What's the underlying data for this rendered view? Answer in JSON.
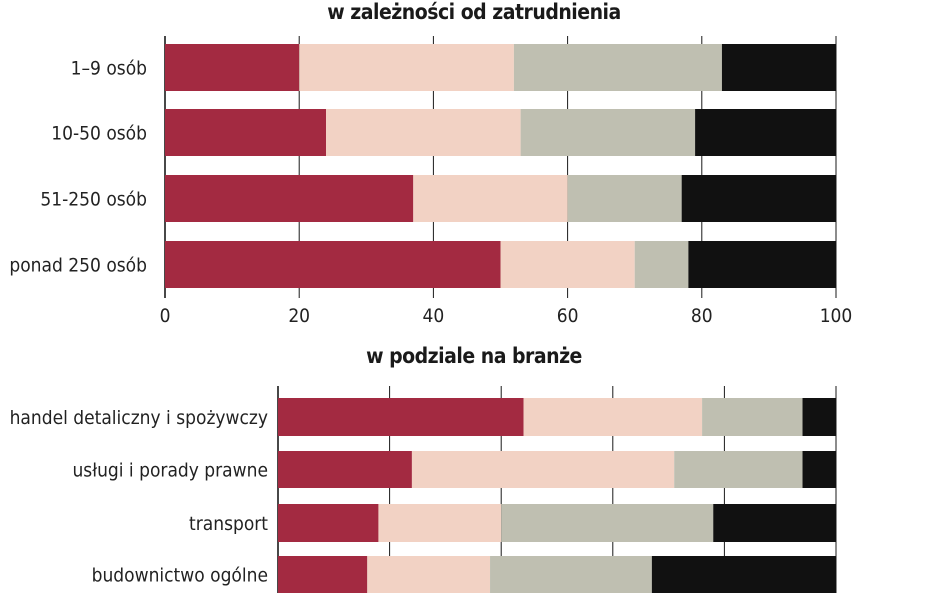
{
  "colors": {
    "series1": "#a32a41",
    "series2": "#f2d2c4",
    "series3": "#bfbfb1",
    "series4": "#111111",
    "grid": "#1a1a1a"
  },
  "chart_data": [
    {
      "type": "bar",
      "orientation": "horizontal",
      "stacked": true,
      "title": "w zależności od zatrudnienia",
      "categories": [
        "1–9 osób",
        "10-50 osób",
        "51-250 osób",
        "ponad 250 osób"
      ],
      "series": [
        {
          "values": [
            20,
            24,
            37,
            50
          ]
        },
        {
          "values": [
            32,
            29,
            23,
            20
          ]
        },
        {
          "values": [
            31,
            26,
            17,
            8
          ]
        },
        {
          "values": [
            17,
            21,
            23,
            22
          ]
        }
      ],
      "xlim": [
        0,
        100
      ],
      "xticks": [
        "0",
        "20",
        "40",
        "60",
        "80",
        "100"
      ],
      "grid": true
    },
    {
      "type": "bar",
      "orientation": "horizontal",
      "stacked": true,
      "title": "w podziale na branże",
      "categories": [
        "handel detaliczny i spożywczy",
        "usługi i porady prawne",
        "transport",
        "budownictwo ogólne"
      ],
      "series": [
        {
          "values": [
            44,
            24,
            18,
            16
          ]
        },
        {
          "values": [
            32,
            47,
            22,
            22
          ]
        },
        {
          "values": [
            18,
            23,
            38,
            29
          ]
        },
        {
          "values": [
            6,
            6,
            22,
            33
          ]
        }
      ],
      "xlim": [
        0,
        100
      ],
      "grid": true
    }
  ]
}
